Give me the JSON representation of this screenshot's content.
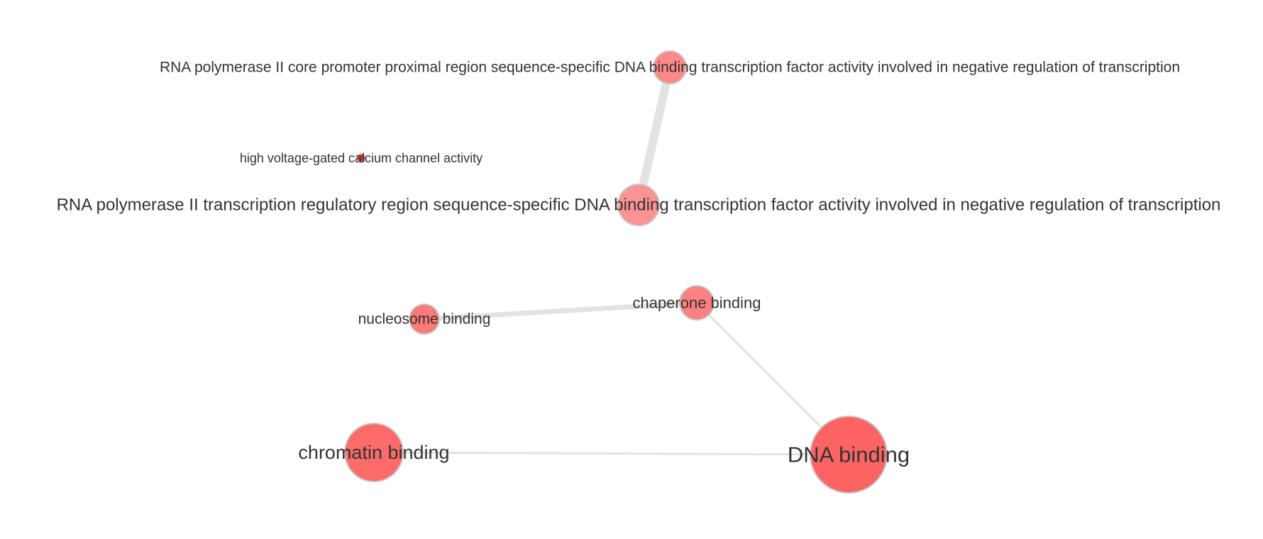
{
  "graph": {
    "type": "network",
    "node_color": "#ff6b6b",
    "node_border_color": "#c7c7c7",
    "edge_color": "#e3e3e3",
    "label_color": "#333333",
    "nodes": [
      {
        "id": "rnap2-core-promoter",
        "label": "RNA polymerase II core promoter proximal region sequence-specific DNA binding transcription factor activity involved in negative regulation of transcription",
        "color": "#fe8989"
      },
      {
        "id": "high-voltage-calcium",
        "label": "high voltage-gated calcium channel activity",
        "color": "#e53030"
      },
      {
        "id": "rnap2-regulatory-region",
        "label": "RNA polymerase II transcription regulatory region sequence-specific DNA binding transcription factor activity involved in negative regulation of transcription",
        "color": "#fe9393"
      },
      {
        "id": "nucleosome-binding",
        "label": "nucleosome binding",
        "color": "#fe7979"
      },
      {
        "id": "chaperone-binding",
        "label": "chaperone binding",
        "color": "#fe8080"
      },
      {
        "id": "chromatin-binding",
        "label": "chromatin binding",
        "color": "#fe6b6b"
      },
      {
        "id": "dna-binding",
        "label": "DNA binding",
        "color": "#fe6464"
      }
    ],
    "edges": [
      {
        "source": "rnap2-core-promoter",
        "target": "rnap2-regulatory-region"
      },
      {
        "source": "nucleosome-binding",
        "target": "chaperone-binding"
      },
      {
        "source": "chaperone-binding",
        "target": "dna-binding"
      },
      {
        "source": "chromatin-binding",
        "target": "dna-binding"
      }
    ]
  }
}
